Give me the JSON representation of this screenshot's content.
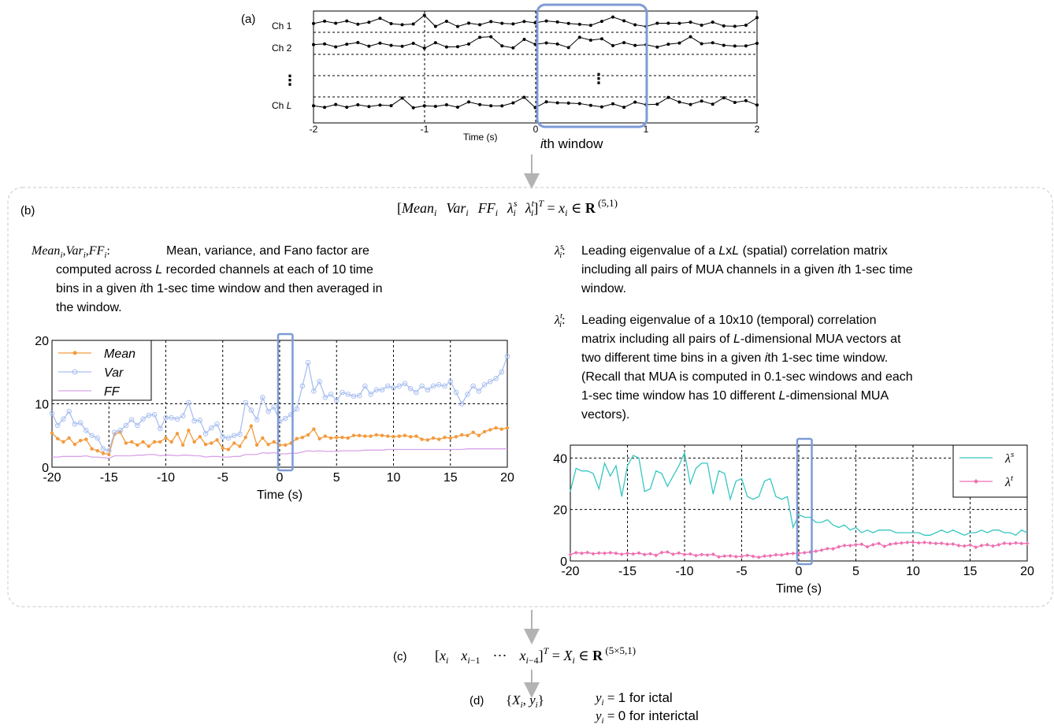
{
  "panel_a": {
    "label": "(a)",
    "channels": [
      "Ch 1",
      "Ch 2",
      "Ch L"
    ],
    "dots": "⋮",
    "x_ticks": [
      "-2",
      "-1",
      "0",
      "1",
      "2"
    ],
    "x_label": "Time (s)",
    "window_label": "ith window"
  },
  "panel_b": {
    "label": "(b)",
    "formula": "[Mean_i  Var_i  FF_i  λ_i^s  λ_i^t]^T = x_i ∈ R^(5,1)",
    "left_desc": {
      "term": "Mean_i,Var_i,FF_i:",
      "lines": [
        "Mean, variance, and Fano factor are",
        "computed across L recorded channels at each of 10 time",
        "bins in a given ith 1-sec time window and then averaged in",
        "the window."
      ]
    },
    "right_desc_s": {
      "term": "λ_i^s:",
      "lines": [
        "Leading eigenvalue of a LxL (spatial) correlation matrix",
        "including all pairs of MUA channels in a given ith 1-sec time",
        "window."
      ]
    },
    "right_desc_t": {
      "term": "λ_i^t:",
      "lines": [
        "Leading eigenvalue of a 10x10 (temporal) correlation",
        "matrix including all pairs of L-dimensional MUA vectors at",
        "two different time bins in a given ith 1-sec time window.",
        "(Recall that MUA is computed in 0.1-sec windows and each",
        "1-sec time window has 10 different L-dimensional MUA",
        "vectors)."
      ]
    }
  },
  "panel_c": {
    "label": "(c)",
    "formula": "[x_i  x_(i-1)  ⋯  x_(i-4)]^T = X_i ∈ R^(5×5,1)"
  },
  "panel_d": {
    "label": "(d)",
    "pair": "{X_i, y_i}",
    "line1": "y_i = 1 for ictal",
    "line2": "y_i = 0 for interictal"
  },
  "colors": {
    "mean": "#f39a3d",
    "var": "#a9bff0",
    "ff": "#d9a3e8",
    "lambda_s": "#36c6c0",
    "lambda_t": "#ee6fb0",
    "window_box": "#7d9bd6",
    "arrow": "#b3b3b3",
    "frame": "#c8c8c8"
  },
  "chart_data": [
    {
      "type": "line",
      "x": [
        -20,
        -19.5,
        -19,
        -18.5,
        -18,
        -17.5,
        -17,
        -16.5,
        -16,
        -15.5,
        -15,
        -14.5,
        -14,
        -13.5,
        -13,
        -12.5,
        -12,
        -11.5,
        -11,
        -10.5,
        -10,
        -9.5,
        -9,
        -8.5,
        -8,
        -7.5,
        -7,
        -6.5,
        -6,
        -5.5,
        -5,
        -4.5,
        -4,
        -3.5,
        -3,
        -2.5,
        -2,
        -1.5,
        -1,
        -0.5,
        0,
        0.5,
        1,
        1.5,
        2,
        2.5,
        3,
        3.5,
        4,
        4.5,
        5,
        5.5,
        6,
        6.5,
        7,
        7.5,
        8,
        8.5,
        9,
        9.5,
        10,
        10.5,
        11,
        11.5,
        12,
        12.5,
        13,
        13.5,
        14,
        14.5,
        15,
        15.5,
        16,
        16.5,
        17,
        17.5,
        18,
        18.5,
        19,
        19.5,
        20
      ],
      "series": [
        {
          "name": "Mean",
          "values": [
            5.4,
            4.5,
            4.0,
            4.6,
            3.6,
            4.2,
            4.4,
            2.9,
            2.6,
            2.2,
            2.0,
            5.2,
            5.5,
            3.8,
            4.0,
            3.5,
            4.0,
            3.3,
            4.0,
            4.0,
            4.6,
            4.0,
            5.3,
            3.5,
            5.8,
            4.0,
            4.8,
            3.6,
            3.8,
            4.3,
            3.0,
            2.8,
            3.8,
            3.3,
            4.7,
            6.5,
            3.5,
            4.6,
            3.6,
            4.0,
            3.5,
            3.5,
            3.8,
            4.5,
            4.7,
            5.1,
            6.0,
            4.5,
            4.9,
            4.6,
            4.7,
            4.7,
            4.6,
            5.0,
            5.0,
            4.9,
            4.9,
            5.1,
            5.0,
            4.9,
            4.8,
            4.9,
            5.0,
            4.8,
            4.9,
            4.4,
            4.3,
            4.6,
            4.4,
            4.7,
            4.6,
            4.8,
            5.1,
            5.0,
            5.5,
            5.0,
            5.6,
            5.9,
            6.2,
            6.0,
            6.2
          ]
        },
        {
          "name": "Var",
          "values": [
            8.5,
            6.6,
            7.6,
            8.8,
            6.8,
            7.0,
            5.8,
            5.0,
            4.6,
            2.9,
            2.6,
            5.5,
            5.8,
            6.6,
            7.5,
            6.6,
            7.6,
            8.2,
            8.3,
            6.1,
            7.8,
            7.8,
            7.6,
            8.1,
            10.2,
            7.3,
            7.4,
            5.3,
            6.2,
            6.8,
            4.8,
            4.6,
            5.0,
            5.2,
            10.2,
            9.0,
            7.5,
            11.0,
            8.8,
            9.5,
            7.2,
            7.7,
            8.3,
            9.2,
            12.8,
            16.5,
            12.0,
            13.5,
            11.0,
            11.5,
            10.5,
            11.8,
            11.5,
            11.2,
            11.3,
            12.8,
            11.5,
            12.2,
            12.2,
            12.8,
            12.5,
            12.8,
            13.2,
            12.4,
            11.8,
            12.8,
            12.2,
            12.8,
            13.0,
            12.8,
            13.5,
            11.8,
            10.0,
            11.5,
            12.8,
            12.0,
            13.0,
            13.5,
            14.0,
            15.0,
            17.5
          ]
        },
        {
          "name": "FF",
          "values": [
            1.6,
            1.6,
            1.7,
            1.7,
            1.7,
            1.7,
            1.8,
            1.6,
            1.6,
            1.5,
            1.4,
            1.8,
            1.8,
            1.8,
            1.8,
            1.9,
            1.9,
            2.0,
            2.0,
            1.8,
            1.9,
            1.9,
            1.8,
            1.9,
            1.9,
            1.8,
            1.8,
            1.6,
            1.7,
            1.7,
            1.6,
            1.6,
            1.7,
            1.7,
            2.0,
            2.0,
            2.0,
            2.3,
            2.2,
            2.3,
            2.1,
            2.1,
            2.2,
            2.2,
            2.4,
            2.6,
            2.5,
            2.6,
            2.5,
            2.5,
            2.5,
            2.6,
            2.6,
            2.6,
            2.6,
            2.7,
            2.7,
            2.7,
            2.7,
            2.8,
            2.8,
            2.8,
            2.8,
            2.8,
            2.8,
            2.8,
            2.8,
            2.8,
            2.8,
            2.8,
            2.8,
            2.8,
            2.8,
            2.9,
            2.9,
            2.9,
            2.9,
            2.9,
            2.9,
            2.9,
            2.9
          ]
        }
      ],
      "ylim": [
        0,
        20
      ],
      "xlim": [
        -20,
        20
      ],
      "x_ticks": [
        "-20",
        "-15",
        "-10",
        "-5",
        "0",
        "5",
        "10",
        "15",
        "20"
      ],
      "y_ticks": [
        "0",
        "10",
        "20"
      ],
      "xlabel": "Time (s)",
      "legend": "top-left",
      "grid": true
    },
    {
      "type": "line",
      "x": [
        -20,
        -19.5,
        -19,
        -18.5,
        -18,
        -17.5,
        -17,
        -16.5,
        -16,
        -15.5,
        -15,
        -14.5,
        -14,
        -13.5,
        -13,
        -12.5,
        -12,
        -11.5,
        -11,
        -10.5,
        -10,
        -9.5,
        -9,
        -8.5,
        -8,
        -7.5,
        -7,
        -6.5,
        -6,
        -5.5,
        -5,
        -4.5,
        -4,
        -3.5,
        -3,
        -2.5,
        -2,
        -1.5,
        -1,
        -0.5,
        0,
        0.5,
        1,
        1.5,
        2,
        2.5,
        3,
        3.5,
        4,
        4.5,
        5,
        5.5,
        6,
        6.5,
        7,
        7.5,
        8,
        8.5,
        9,
        9.5,
        10,
        10.5,
        11,
        11.5,
        12,
        12.5,
        13,
        13.5,
        14,
        14.5,
        15,
        15.5,
        16,
        16.5,
        17,
        17.5,
        18,
        18.5,
        19,
        19.5,
        20
      ],
      "series": [
        {
          "name": "λ^s",
          "values": [
            27,
            36,
            35,
            35,
            34,
            28,
            38,
            33,
            37,
            25,
            37,
            41,
            40,
            27,
            28,
            35,
            34,
            29,
            33,
            37,
            42,
            30,
            36,
            38,
            38,
            26,
            35,
            34,
            24,
            31,
            32,
            25,
            24,
            25,
            31,
            32,
            25,
            24,
            25,
            13,
            18,
            17,
            17,
            15,
            15,
            16,
            14,
            13,
            14,
            12,
            13,
            11,
            12,
            11,
            12,
            12,
            12,
            11,
            11,
            11,
            11,
            11,
            10,
            10,
            11,
            12,
            11,
            12,
            11,
            10,
            11,
            11,
            12,
            11,
            12,
            12,
            11,
            11,
            10,
            12,
            11
          ]
        },
        {
          "name": "λ^t",
          "values": [
            2.5,
            3.2,
            3.0,
            3.3,
            2.8,
            3.1,
            3.0,
            3.2,
            3.0,
            2.6,
            3.0,
            2.7,
            3.1,
            2.5,
            2.8,
            2.2,
            3.3,
            3.5,
            2.6,
            3.1,
            2.5,
            2.7,
            2.1,
            2.5,
            2.3,
            2.6,
            1.6,
            1.9,
            2.0,
            1.7,
            1.8,
            2.2,
            1.8,
            1.4,
            1.9,
            2.0,
            2.4,
            2.3,
            2.8,
            2.9,
            3.0,
            3.2,
            3.5,
            3.8,
            4.2,
            4.8,
            4.7,
            5.5,
            6.0,
            6.0,
            6.3,
            6.5,
            5.5,
            6.3,
            6.8,
            5.7,
            6.5,
            6.8,
            7.0,
            7.2,
            7.3,
            7.0,
            7.2,
            7.0,
            6.8,
            6.9,
            6.5,
            6.6,
            6.0,
            5.8,
            6.2,
            5.3,
            6.0,
            6.3,
            5.8,
            6.3,
            6.9,
            6.7,
            7.0,
            6.8,
            6.8
          ]
        }
      ],
      "ylim": [
        0,
        45
      ],
      "xlim": [
        -20,
        20
      ],
      "x_ticks": [
        "-20",
        "-15",
        "-10",
        "-5",
        "0",
        "5",
        "10",
        "15",
        "20"
      ],
      "y_ticks": [
        "0",
        "20",
        "40"
      ],
      "xlabel": "Time (s)",
      "legend": "top-right",
      "grid": true
    }
  ]
}
